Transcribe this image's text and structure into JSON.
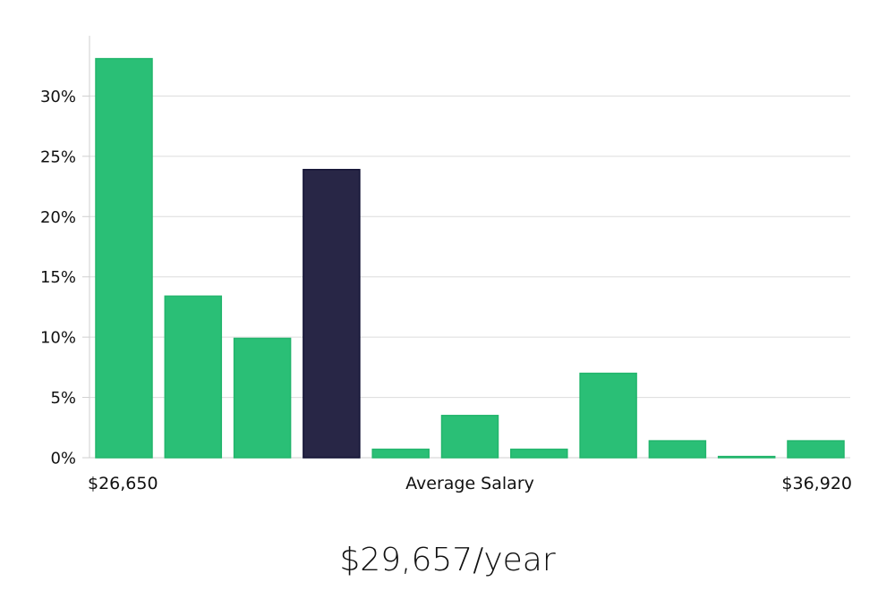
{
  "chart_data": {
    "type": "bar",
    "xlabel": "Average Salary",
    "x_range_labels": {
      "min": "$26,650",
      "max": "$36,920"
    },
    "values": [
      33.1,
      13.4,
      9.9,
      23.9,
      0.7,
      3.5,
      0.7,
      7.0,
      1.4,
      0.1,
      1.4
    ],
    "highlight_index": 3,
    "ylim": [
      0,
      35
    ],
    "yticks": [
      0,
      5,
      10,
      15,
      20,
      25,
      30
    ],
    "ytick_labels": [
      "0%",
      "5%",
      "10%",
      "15%",
      "20%",
      "25%",
      "30%"
    ],
    "grid": true,
    "colors": {
      "bar": "#2abf76",
      "highlight": "#282646",
      "grid": "#dcdcdc",
      "axis": "#cfcfcf"
    }
  },
  "summary": {
    "average_salary": "$29,657/year"
  }
}
